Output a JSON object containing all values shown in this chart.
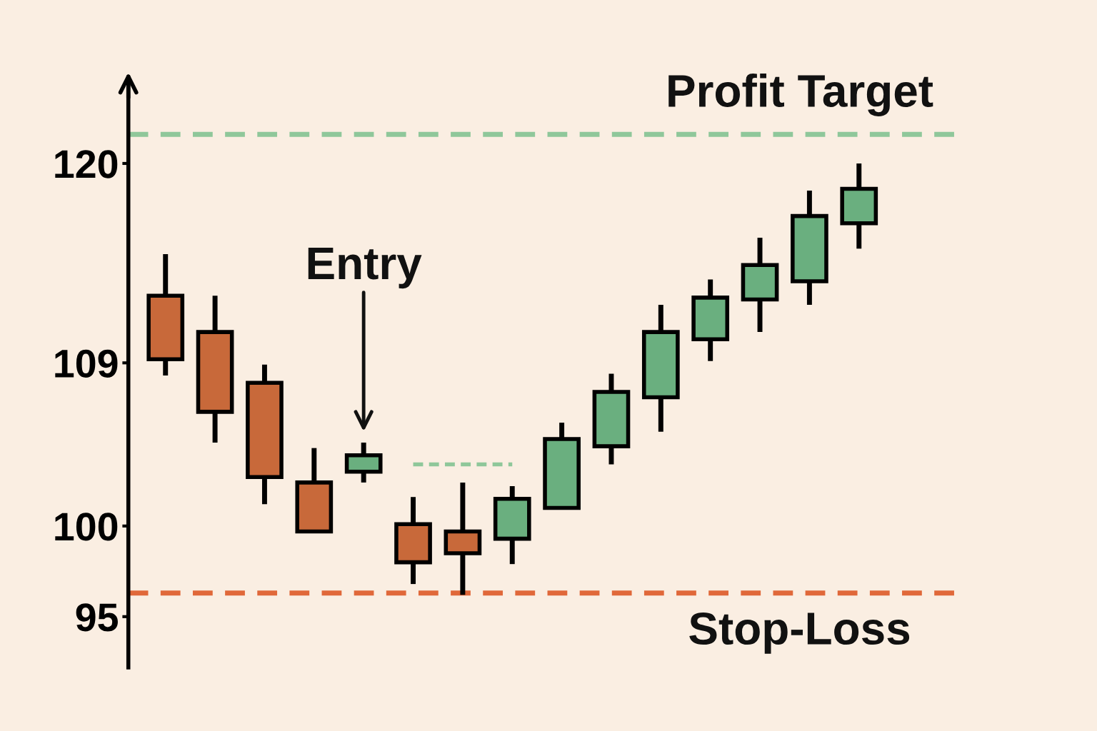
{
  "chart_data": {
    "type": "candlestick",
    "categories": [
      null,
      null,
      null,
      null,
      null,
      null,
      null,
      null,
      null,
      null,
      null,
      null,
      null,
      null,
      null
    ],
    "ohlc": [
      [
        112.7,
        115.0,
        108.3,
        109.2
      ],
      [
        110.7,
        112.7,
        104.6,
        106.3
      ],
      [
        107.9,
        108.9,
        101.2,
        102.7
      ],
      [
        102.4,
        104.3,
        99.6,
        99.7
      ],
      [
        103.0,
        104.6,
        102.4,
        103.9
      ],
      [
        100.1,
        101.6,
        96.8,
        98.0
      ],
      [
        99.7,
        102.4,
        96.2,
        98.5
      ],
      [
        99.3,
        102.2,
        97.9,
        101.5
      ],
      [
        101.0,
        105.7,
        101.0,
        104.8
      ],
      [
        104.4,
        108.4,
        103.4,
        107.4
      ],
      [
        107.1,
        112.2,
        105.2,
        110.7
      ],
      [
        110.3,
        113.6,
        109.1,
        112.6
      ],
      [
        112.5,
        115.9,
        110.7,
        114.4
      ],
      [
        113.5,
        118.5,
        112.2,
        117.1
      ],
      [
        116.7,
        120.0,
        115.3,
        118.6
      ]
    ],
    "colors": [
      "#c8693a",
      "#c8693a",
      "#c8693a",
      "#c8693a",
      "#6aaf7f",
      "#c8693a",
      "#c8693a",
      "#6aaf7f",
      "#6aaf7f",
      "#6aaf7f",
      "#6aaf7f",
      "#6aaf7f",
      "#6aaf7f",
      "#6aaf7f",
      "#6aaf7f"
    ],
    "series": [
      {
        "type": "line",
        "color": "#8fc79a",
        "line_style": "dashed",
        "values": [
          null,
          null,
          null,
          null,
          null,
          103.4,
          103.4,
          103.4,
          null,
          null,
          null,
          null,
          null,
          null,
          null
        ]
      }
    ],
    "ylim": [
      92.2,
      124.5
    ],
    "yticks": [
      95,
      100,
      109,
      120
    ],
    "tick_labels": "y",
    "grid": false,
    "legend": false,
    "ref_lines": [
      {
        "axis": "y",
        "value": 121.6,
        "label": "Profit Target",
        "color": "#8fc79a",
        "line_style": "dashed"
      },
      {
        "axis": "y",
        "value": 96.3,
        "label": "Stop-Loss",
        "color": "#e0683a",
        "line_style": "dashed"
      }
    ],
    "annotations": [
      "Entry"
    ]
  }
}
